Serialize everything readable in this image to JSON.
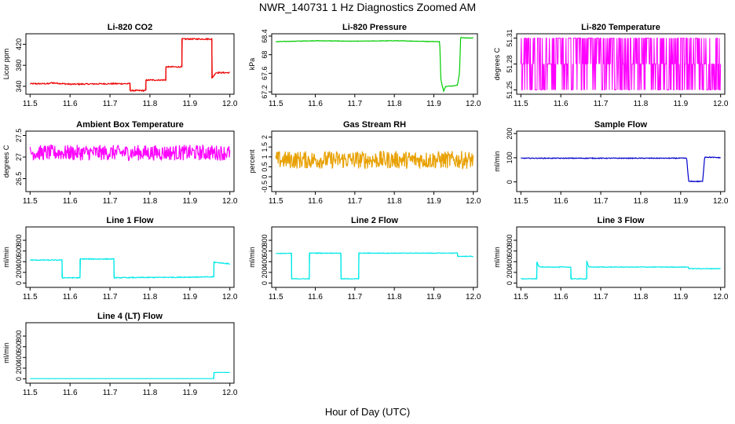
{
  "page": {
    "title": "NWR_140731  1 Hz Diagnostics Zoomed AM",
    "xlabel": "Hour of Day (UTC)"
  },
  "chart_data": [
    {
      "type": "line",
      "title": "Li-820 CO2",
      "ylabel": "Licor ppm",
      "color": "#ee0000",
      "xlim": [
        11.5,
        12.0
      ],
      "xticks": [
        11.5,
        11.6,
        11.7,
        11.8,
        11.9,
        12.0
      ],
      "ylim": [
        325,
        440
      ],
      "yticks": [
        340,
        380,
        420
      ],
      "noise": 1.2,
      "x": [
        11.5,
        11.55,
        11.55,
        11.6,
        11.7,
        11.75,
        11.75,
        11.79,
        11.79,
        11.84,
        11.84,
        11.88,
        11.88,
        11.955,
        11.955,
        11.965,
        11.97,
        12.0
      ],
      "y": [
        345,
        345,
        347,
        344,
        345,
        345,
        332,
        332,
        352,
        352,
        377,
        377,
        430,
        430,
        355,
        366,
        366,
        366
      ]
    },
    {
      "type": "line",
      "title": "Li-820 Pressure",
      "ylabel": "kPa",
      "color": "#00cc00",
      "xlim": [
        11.5,
        12.0
      ],
      "xticks": [
        11.5,
        11.6,
        11.7,
        11.8,
        11.9,
        12.0
      ],
      "ylim": [
        67.15,
        68.45
      ],
      "yticks": [
        67.2,
        67.6,
        68.0,
        68.4
      ],
      "noise": 0.005,
      "x": [
        11.5,
        11.6,
        11.7,
        11.8,
        11.915,
        11.918,
        11.925,
        11.93,
        11.95,
        11.96,
        11.965,
        11.968,
        11.975,
        12.0
      ],
      "y": [
        68.28,
        68.3,
        68.29,
        68.3,
        68.28,
        67.45,
        67.22,
        67.32,
        67.33,
        67.35,
        67.6,
        68.38,
        68.36,
        68.36
      ]
    },
    {
      "type": "step-noise",
      "title": "Li-820 Temperature",
      "ylabel": "degrees C",
      "color": "#ff00ff",
      "xlim": [
        11.5,
        12.0
      ],
      "xticks": [
        11.5,
        11.6,
        11.7,
        11.8,
        11.9,
        12.0
      ],
      "ylim": [
        51.245,
        51.315
      ],
      "yticks": [
        51.25,
        51.28,
        51.31
      ],
      "levels": [
        51.25,
        51.28,
        51.31
      ]
    },
    {
      "type": "line",
      "title": "Ambient Box Temperature",
      "ylabel": "degrees C",
      "color": "#ff00ff",
      "xlim": [
        11.5,
        12.0
      ],
      "xticks": [
        11.5,
        11.6,
        11.7,
        11.8,
        11.9,
        12.0
      ],
      "ylim": [
        26.2,
        27.6
      ],
      "yticks": [
        26.5,
        27.0,
        27.5
      ],
      "noise": 0.18,
      "x": [
        11.5,
        12.0
      ],
      "y": [
        27.1,
        27.1
      ]
    },
    {
      "type": "line",
      "title": "Gas Stream RH",
      "ylabel": "percent",
      "color": "#e8a000",
      "xlim": [
        11.5,
        12.0
      ],
      "xticks": [
        11.5,
        11.6,
        11.7,
        11.8,
        11.9,
        12.0
      ],
      "ylim": [
        -0.75,
        2.3
      ],
      "yticks": [
        -0.5,
        0.0,
        0.5,
        1.0,
        1.5,
        2.0
      ],
      "noise": 0.45,
      "x": [
        11.5,
        12.0
      ],
      "y": [
        0.85,
        0.85
      ]
    },
    {
      "type": "line",
      "title": "Sample Flow",
      "ylabel": "ml/min",
      "color": "#0000cc",
      "xlim": [
        11.5,
        12.0
      ],
      "xticks": [
        11.5,
        11.6,
        11.7,
        11.8,
        11.9,
        12.0
      ],
      "ylim": [
        -40,
        210
      ],
      "yticks": [
        0,
        100,
        200
      ],
      "noise": 1.5,
      "x": [
        11.5,
        11.915,
        11.92,
        11.955,
        11.96,
        12.0
      ],
      "y": [
        98,
        98,
        2,
        2,
        103,
        100
      ]
    },
    {
      "type": "line",
      "title": "Line 1 Flow",
      "ylabel": "ml/min",
      "color": "#00e8e8",
      "xlim": [
        11.5,
        12.0
      ],
      "xticks": [
        11.5,
        11.6,
        11.7,
        11.8,
        11.9,
        12.0
      ],
      "ylim": [
        -80,
        1050
      ],
      "yticks": [
        0,
        200,
        400,
        600,
        800
      ],
      "noise": 8,
      "x": [
        11.5,
        11.58,
        11.58,
        11.625,
        11.625,
        11.71,
        11.71,
        11.96,
        11.96,
        12.0
      ],
      "y": [
        430,
        430,
        100,
        100,
        450,
        450,
        100,
        115,
        390,
        360
      ]
    },
    {
      "type": "line",
      "title": "Line 2 Flow",
      "ylabel": "ml/min",
      "color": "#00e8e8",
      "xlim": [
        11.5,
        12.0
      ],
      "xticks": [
        11.5,
        11.6,
        11.7,
        11.8,
        11.9,
        12.0
      ],
      "ylim": [
        -80,
        1050
      ],
      "yticks": [
        0,
        200,
        400,
        600,
        800
      ],
      "noise": 6,
      "x": [
        11.5,
        11.54,
        11.54,
        11.585,
        11.585,
        11.665,
        11.665,
        11.71,
        11.71,
        11.96,
        11.96,
        12.0
      ],
      "y": [
        555,
        555,
        80,
        80,
        560,
        560,
        80,
        80,
        560,
        560,
        500,
        500
      ]
    },
    {
      "type": "line",
      "title": "Line 3 Flow",
      "ylabel": "ml/min",
      "color": "#00e8e8",
      "xlim": [
        11.5,
        12.0
      ],
      "xticks": [
        11.5,
        11.6,
        11.7,
        11.8,
        11.9,
        12.0
      ],
      "ylim": [
        -80,
        1050
      ],
      "yticks": [
        0,
        200,
        400,
        600,
        800
      ],
      "noise": 6,
      "x": [
        11.5,
        11.54,
        11.54,
        11.545,
        11.55,
        11.625,
        11.625,
        11.665,
        11.665,
        11.67,
        11.92,
        11.92,
        12.0
      ],
      "y": [
        80,
        80,
        400,
        310,
        300,
        300,
        80,
        80,
        420,
        300,
        300,
        270,
        270
      ]
    },
    {
      "type": "line",
      "title": "Line 4 (LT) Flow",
      "ylabel": "ml/min",
      "color": "#00e8e8",
      "xlim": [
        11.5,
        12.0
      ],
      "xticks": [
        11.5,
        11.6,
        11.7,
        11.8,
        11.9,
        12.0
      ],
      "ylim": [
        -80,
        1050
      ],
      "yticks": [
        0,
        200,
        400,
        600,
        800
      ],
      "noise": 1,
      "x": [
        11.5,
        11.96,
        11.96,
        12.0
      ],
      "y": [
        5,
        5,
        120,
        120
      ]
    }
  ]
}
